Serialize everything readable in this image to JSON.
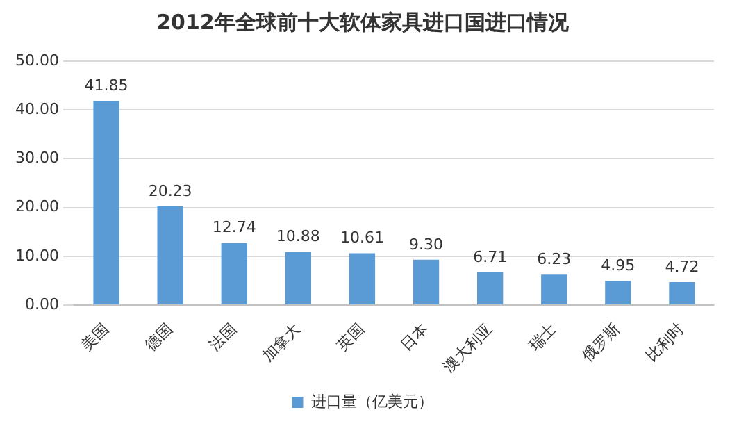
{
  "chart_data": {
    "type": "bar",
    "title": "2012年全球前十大软体家具进口国进口情况",
    "categories": [
      "美国",
      "德国",
      "法国",
      "加拿大",
      "英国",
      "日本",
      "澳大利亚",
      "瑞士",
      "俄罗斯",
      "比利时"
    ],
    "series": [
      {
        "name": "进口量（亿美元）",
        "color": "#5b9bd5",
        "values": [
          41.85,
          20.23,
          12.74,
          10.88,
          10.61,
          9.3,
          6.71,
          6.23,
          4.95,
          4.72
        ],
        "value_labels": [
          "41.85",
          "20.23",
          "12.74",
          "10.88",
          "10.61",
          "9.30",
          "6.71",
          "6.23",
          "4.95",
          "4.72"
        ]
      }
    ],
    "ylim": [
      0,
      50
    ],
    "yticks": [
      {
        "value": 0,
        "label": "0.00"
      },
      {
        "value": 10,
        "label": "10.00"
      },
      {
        "value": 20,
        "label": "20.00"
      },
      {
        "value": 30,
        "label": "30.00"
      },
      {
        "value": 40,
        "label": "40.00"
      },
      {
        "value": 50,
        "label": "50.00"
      }
    ],
    "grid": "y",
    "legend": "bottom"
  }
}
